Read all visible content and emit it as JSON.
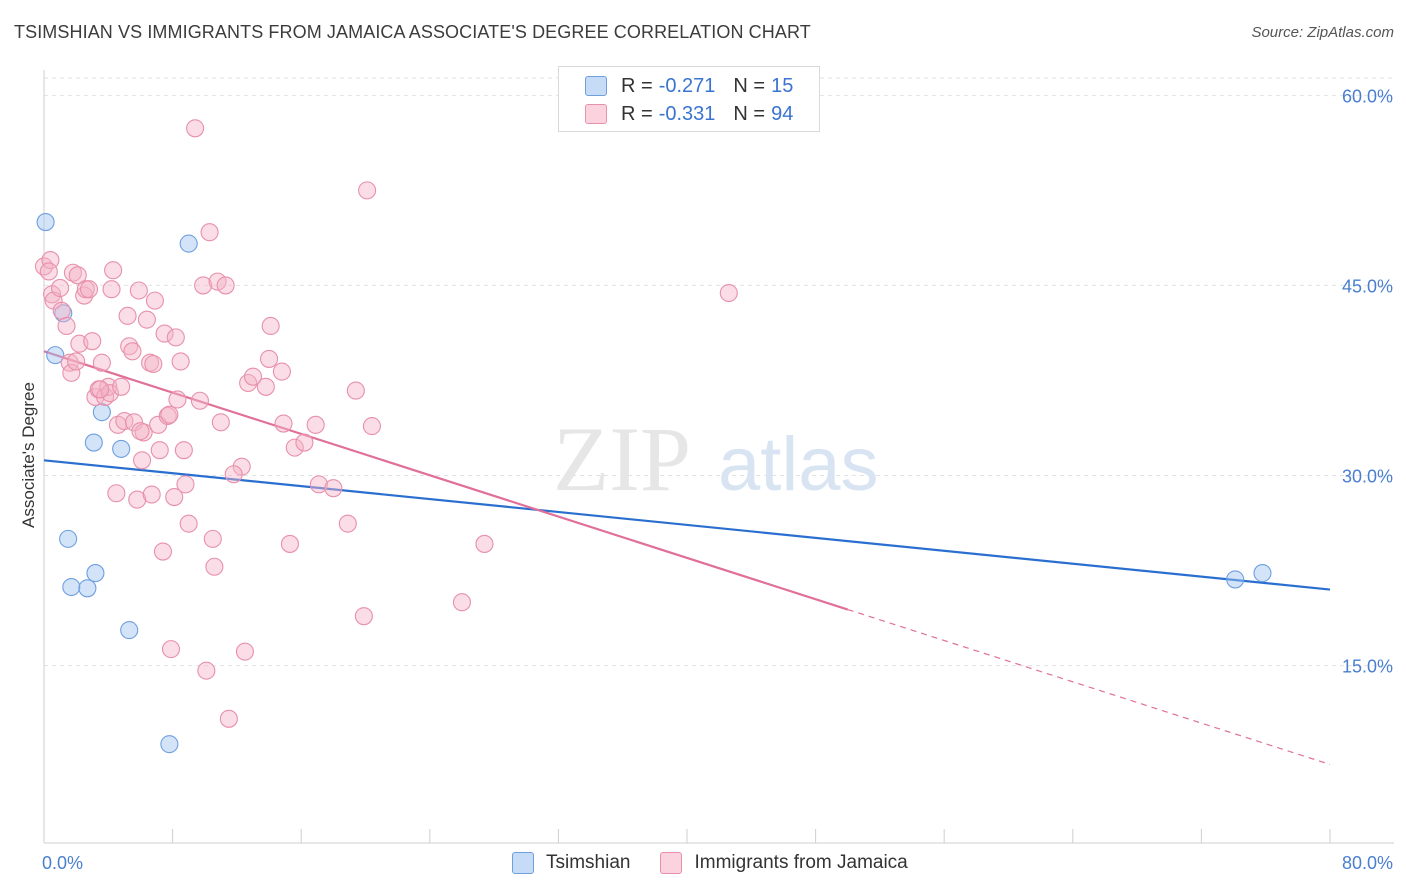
{
  "title": "TSIMSHIAN VS IMMIGRANTS FROM JAMAICA ASSOCIATE'S DEGREE CORRELATION CHART",
  "source": "Source: ZipAtlas.com",
  "watermark": {
    "zip": "ZIP",
    "atlas": "atlas"
  },
  "legend": [
    {
      "r_label": "R =",
      "r_value": "-0.271",
      "n_label": "N =",
      "n_value": "15",
      "color": "#a9c8f0",
      "border": "#6f9fe0"
    },
    {
      "r_label": "R =",
      "r_value": "-0.331",
      "n_label": "N =",
      "n_value": "94",
      "color": "#f7c0d0",
      "border": "#e890ab"
    }
  ],
  "bottom_legend": [
    "Tsimshian",
    "Immigrants from Jamaica"
  ],
  "chart_data": {
    "type": "scatter",
    "title": "TSIMSHIAN VS IMMIGRANTS FROM JAMAICA ASSOCIATE'S DEGREE CORRELATION CHART",
    "xlabel": "",
    "ylabel": "Associate's Degree",
    "xlim": [
      0,
      80
    ],
    "ylim": [
      1,
      62
    ],
    "y_ticks": [
      15,
      30,
      45,
      60
    ],
    "y_tick_labels": [
      "15.0%",
      "30.0%",
      "45.0%",
      "60.0%"
    ],
    "x_tick_labels": [
      "0.0%",
      "80.0%"
    ],
    "grid": true,
    "series": [
      {
        "name": "Tsimshian",
        "color": "#6f9fe0",
        "fill": "rgba(160,195,240,0.45)",
        "trend_color": "#2a6fd0",
        "trend": {
          "x0": 0,
          "y0": 31.2,
          "x1": 80,
          "y1": 21.0,
          "solid_to": 80
        },
        "points": [
          [
            0.1,
            50.0
          ],
          [
            0.7,
            39.5
          ],
          [
            1.2,
            42.8
          ],
          [
            1.5,
            25.0
          ],
          [
            1.7,
            21.2
          ],
          [
            2.7,
            21.1
          ],
          [
            3.1,
            32.6
          ],
          [
            3.2,
            22.3
          ],
          [
            3.6,
            35.0
          ],
          [
            4.8,
            32.1
          ],
          [
            5.3,
            17.8
          ],
          [
            7.8,
            8.8
          ],
          [
            9.0,
            48.3
          ],
          [
            74.1,
            21.8
          ],
          [
            75.8,
            22.3
          ]
        ]
      },
      {
        "name": "Immigrants from Jamaica",
        "color": "#e890ab",
        "fill": "rgba(245,180,200,0.45)",
        "trend_color": "#e0709a",
        "trend": {
          "x0": 0,
          "y0": 39.8,
          "x1": 80,
          "y1": 7.2,
          "solid_to": 50
        },
        "points": [
          [
            0.0,
            46.5
          ],
          [
            0.4,
            47.0
          ],
          [
            0.5,
            44.3
          ],
          [
            0.6,
            43.8
          ],
          [
            1.0,
            44.8
          ],
          [
            1.1,
            43.0
          ],
          [
            1.4,
            41.8
          ],
          [
            1.6,
            38.9
          ],
          [
            1.7,
            38.1
          ],
          [
            1.8,
            46.0
          ],
          [
            2.1,
            45.8
          ],
          [
            2.2,
            40.4
          ],
          [
            2.5,
            44.2
          ],
          [
            2.6,
            44.7
          ],
          [
            2.8,
            44.7
          ],
          [
            3.0,
            40.6
          ],
          [
            3.2,
            36.2
          ],
          [
            3.4,
            36.8
          ],
          [
            3.6,
            38.9
          ],
          [
            3.8,
            36.2
          ],
          [
            4.0,
            37.0
          ],
          [
            4.1,
            36.5
          ],
          [
            4.2,
            44.7
          ],
          [
            4.3,
            46.2
          ],
          [
            4.5,
            28.6
          ],
          [
            4.6,
            34.0
          ],
          [
            4.8,
            37.0
          ],
          [
            5.0,
            34.3
          ],
          [
            5.2,
            42.6
          ],
          [
            5.3,
            40.2
          ],
          [
            5.5,
            39.8
          ],
          [
            5.6,
            34.2
          ],
          [
            5.8,
            28.1
          ],
          [
            5.9,
            44.6
          ],
          [
            6.1,
            31.2
          ],
          [
            6.2,
            33.4
          ],
          [
            6.4,
            42.3
          ],
          [
            6.6,
            38.9
          ],
          [
            6.7,
            28.5
          ],
          [
            6.8,
            38.8
          ],
          [
            6.9,
            43.8
          ],
          [
            7.1,
            34.0
          ],
          [
            7.2,
            32.0
          ],
          [
            7.4,
            24.0
          ],
          [
            7.5,
            41.2
          ],
          [
            7.7,
            34.7
          ],
          [
            7.8,
            34.8
          ],
          [
            7.9,
            16.3
          ],
          [
            8.1,
            28.3
          ],
          [
            8.2,
            40.9
          ],
          [
            8.5,
            39.0
          ],
          [
            8.7,
            32.0
          ],
          [
            8.8,
            29.3
          ],
          [
            9.0,
            26.2
          ],
          [
            9.4,
            57.4
          ],
          [
            9.7,
            35.9
          ],
          [
            9.9,
            45.0
          ],
          [
            10.1,
            14.6
          ],
          [
            10.3,
            49.2
          ],
          [
            10.5,
            25.0
          ],
          [
            10.6,
            22.8
          ],
          [
            10.8,
            45.3
          ],
          [
            11.0,
            34.2
          ],
          [
            11.3,
            45.0
          ],
          [
            11.5,
            10.8
          ],
          [
            12.3,
            30.7
          ],
          [
            12.5,
            16.1
          ],
          [
            12.7,
            37.3
          ],
          [
            13.8,
            37.0
          ],
          [
            14.0,
            39.2
          ],
          [
            14.1,
            41.8
          ],
          [
            14.8,
            38.2
          ],
          [
            14.9,
            34.1
          ],
          [
            15.3,
            24.6
          ],
          [
            15.6,
            32.2
          ],
          [
            16.2,
            32.6
          ],
          [
            16.9,
            34.0
          ],
          [
            17.1,
            29.3
          ],
          [
            18.9,
            26.2
          ],
          [
            19.4,
            36.7
          ],
          [
            19.9,
            18.9
          ],
          [
            20.1,
            52.5
          ],
          [
            20.4,
            33.9
          ],
          [
            26.0,
            20.0
          ],
          [
            27.4,
            24.6
          ],
          [
            42.6,
            44.4
          ],
          [
            0.3,
            46.1
          ],
          [
            2.0,
            39.0
          ],
          [
            3.5,
            36.8
          ],
          [
            6.0,
            33.5
          ],
          [
            8.3,
            36.0
          ],
          [
            11.8,
            30.1
          ],
          [
            13.0,
            37.8
          ],
          [
            18.0,
            29.0
          ]
        ]
      }
    ]
  }
}
